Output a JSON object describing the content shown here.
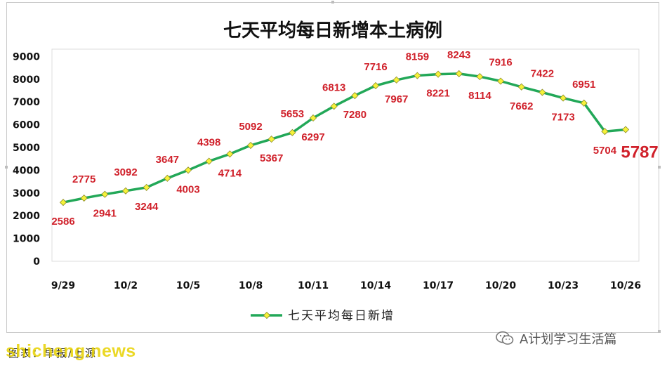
{
  "footer": {
    "caption": "图表：早报/上源",
    "watermark_left": "shicheng.news",
    "watermark_right": "A计划学习生活篇"
  },
  "chart_data": {
    "type": "line",
    "title": "七天平均每日新增本土病例",
    "x": [
      "9/29",
      "9/30",
      "10/1",
      "10/2",
      "10/3",
      "10/4",
      "10/5",
      "10/6",
      "10/7",
      "10/8",
      "10/9",
      "10/10",
      "10/11",
      "10/12",
      "10/13",
      "10/14",
      "10/15",
      "10/16",
      "10/17",
      "10/18",
      "10/19",
      "10/20",
      "10/21",
      "10/22",
      "10/23",
      "10/24",
      "10/25",
      "10/26"
    ],
    "x_tick_labels": [
      "9/29",
      "10/2",
      "10/5",
      "10/8",
      "10/11",
      "10/14",
      "10/17",
      "10/20",
      "10/23",
      "10/26"
    ],
    "series": [
      {
        "name": "七天平均每日新增",
        "color": "#22a858",
        "marker_color": "#f5f23a",
        "values": [
          2586,
          2775,
          2941,
          3092,
          3244,
          3647,
          4003,
          4398,
          4714,
          5092,
          5367,
          5653,
          6297,
          6813,
          7280,
          7716,
          7967,
          8159,
          8221,
          8243,
          8114,
          7916,
          7662,
          7422,
          7173,
          6951,
          5704,
          5787
        ]
      }
    ],
    "data_labels": [
      "2586",
      "2775",
      "2941",
      "3092",
      "3244",
      "3647",
      "4003",
      "4398",
      "4714",
      "5092",
      "5367",
      "5653",
      "6297",
      "6813",
      "7280",
      "7716",
      "7967",
      "8159",
      "8221",
      "8243",
      "8114",
      "7916",
      "7662",
      "7422",
      "7173",
      "6951",
      "5704",
      "5787"
    ],
    "y_ticks": [
      "0",
      "1000",
      "2000",
      "3000",
      "4000",
      "5000",
      "6000",
      "7000",
      "8000",
      "9000"
    ],
    "ylim": [
      0,
      9000
    ],
    "label_color": "#d0202a",
    "grid": false,
    "legend": "bottom"
  }
}
